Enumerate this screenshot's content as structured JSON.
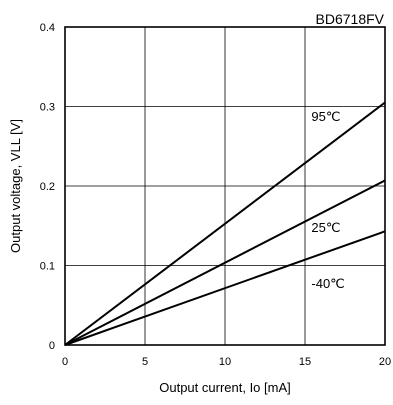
{
  "chart_data": {
    "type": "line",
    "title": "BD6718FV",
    "xlabel": "Output current, Io [mA]",
    "ylabel": "Output voltage, VLL [V]",
    "xlim": [
      0,
      20
    ],
    "ylim": [
      0,
      0.4
    ],
    "x_ticks": [
      0,
      5,
      10,
      15,
      20
    ],
    "y_ticks": [
      0,
      0.1,
      0.2,
      0.3,
      0.4
    ],
    "x_tick_labels": [
      "0",
      "5",
      "10",
      "15",
      "20"
    ],
    "y_tick_labels": [
      "0",
      "0.1",
      "0.2",
      "0.3",
      "0.4"
    ],
    "grid": true,
    "legend": "none",
    "series": [
      {
        "name": "95℃",
        "x": [
          0,
          20
        ],
        "y": [
          0,
          0.305
        ],
        "color": "#000000"
      },
      {
        "name": "25℃",
        "x": [
          0,
          20
        ],
        "y": [
          0,
          0.207
        ],
        "color": "#000000"
      },
      {
        "name": "-40℃",
        "x": [
          0,
          20
        ],
        "y": [
          0,
          0.143
        ],
        "color": "#000000"
      }
    ],
    "annotations": [
      {
        "text": "95℃",
        "x": 15.4,
        "y": 0.282
      },
      {
        "text": "25℃",
        "x": 15.4,
        "y": 0.142
      },
      {
        "text": "-40℃",
        "x": 15.4,
        "y": 0.072
      }
    ]
  }
}
